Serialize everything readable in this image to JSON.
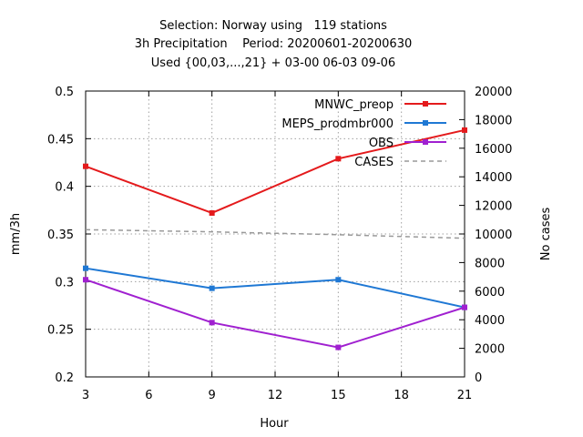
{
  "title_lines": [
    "Selection: Norway using   119 stations",
    "3h Precipitation    Period: 20200601-20200630",
    "Used {00,03,...,21} + 03-00 06-03 09-06"
  ],
  "chart_data": {
    "type": "line",
    "xlabel": "Hour",
    "ylabel": "mm/3h",
    "y2label": "No cases",
    "xlim": [
      3,
      21
    ],
    "ylim": [
      0.2,
      0.5
    ],
    "y2lim": [
      0,
      20000
    ],
    "xticks": [
      "3",
      "6",
      "9",
      "12",
      "15",
      "18",
      "21"
    ],
    "yticks": [
      "0.2",
      "0.25",
      "0.3",
      "0.35",
      "0.4",
      "0.45",
      "0.5"
    ],
    "y2ticks": [
      "0",
      "2000",
      "4000",
      "6000",
      "8000",
      "10000",
      "12000",
      "14000",
      "16000",
      "18000",
      "20000"
    ],
    "grid": true,
    "legend_position": "top-right",
    "x": [
      3,
      9,
      15,
      21
    ],
    "series": [
      {
        "name": "MNWC_preop",
        "color": "#e41a1c",
        "marker": "square",
        "axis": "y",
        "values": [
          0.421,
          0.372,
          0.429,
          0.459
        ]
      },
      {
        "name": "MEPS_prodmbr000",
        "color": "#1f78d4",
        "marker": "square",
        "axis": "y",
        "values": [
          0.314,
          0.293,
          0.302,
          0.273
        ]
      },
      {
        "name": "OBS",
        "color": "#a020d0",
        "marker": "square",
        "axis": "y",
        "values": [
          0.302,
          0.257,
          0.231,
          0.273
        ]
      },
      {
        "name": "CASES",
        "color": "#999999",
        "marker": "none",
        "dashed": true,
        "axis": "y2",
        "values": [
          10300,
          10150,
          9950,
          9700
        ]
      }
    ]
  }
}
